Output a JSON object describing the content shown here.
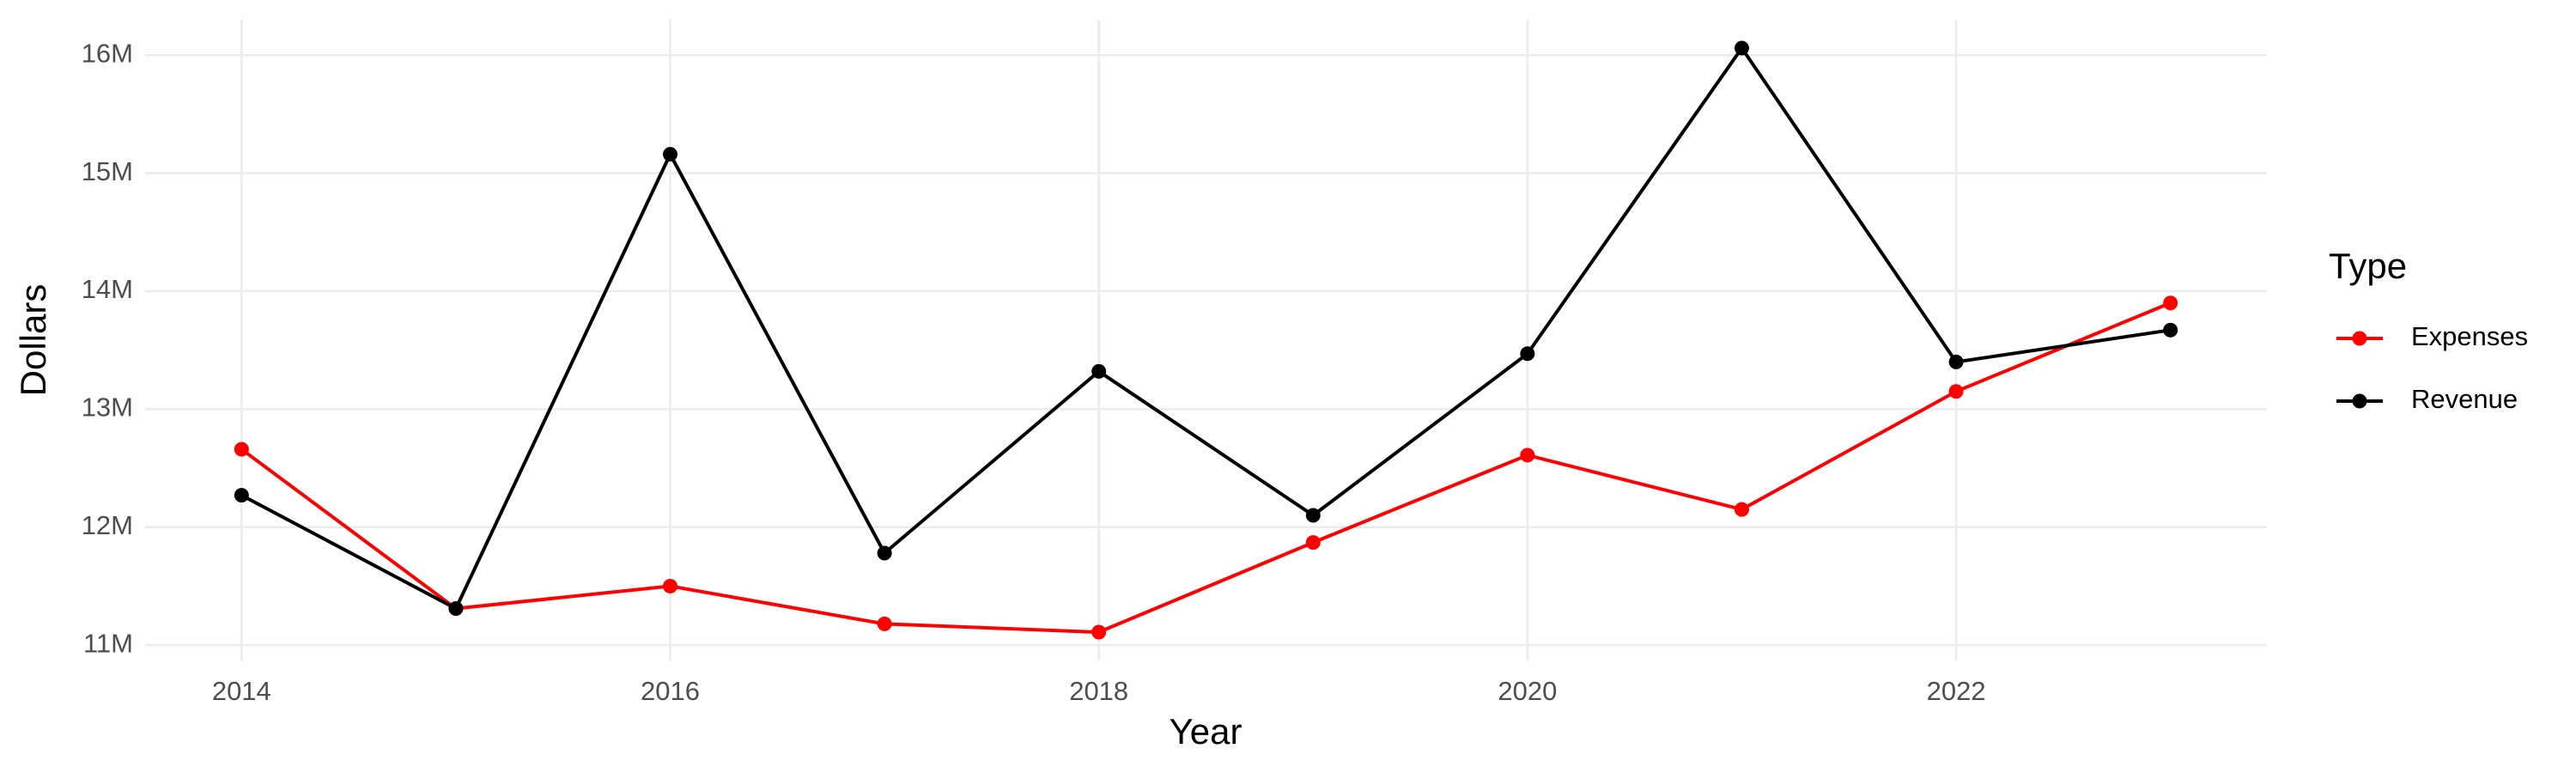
{
  "chart_data": {
    "type": "line",
    "x_label": "Year",
    "y_label": "Dollars",
    "legend_title": "Type",
    "x": [
      2014,
      2015,
      2016,
      2017,
      2018,
      2019,
      2020,
      2021,
      2022,
      2023
    ],
    "series": [
      {
        "name": "Expenses",
        "color": "#ff0000",
        "values": [
          12660000,
          11310000,
          11500000,
          11180000,
          11110000,
          11870000,
          12610000,
          12150000,
          13150000,
          13900000
        ]
      },
      {
        "name": "Revenue",
        "color": "#000000",
        "values": [
          12270000,
          11310000,
          15160000,
          11780000,
          13320000,
          12100000,
          13470000,
          16060000,
          13400000,
          13670000
        ]
      }
    ],
    "xlim": [
      2013.55,
      2023.45
    ],
    "xticks": [
      2014,
      2016,
      2018,
      2020,
      2022
    ],
    "ylim": [
      10870000,
      16300000
    ],
    "yticks": [
      {
        "value": 11000000,
        "label": "11M"
      },
      {
        "value": 12000000,
        "label": "12M"
      },
      {
        "value": 13000000,
        "label": "13M"
      },
      {
        "value": 14000000,
        "label": "14M"
      },
      {
        "value": 15000000,
        "label": "15M"
      },
      {
        "value": 16000000,
        "label": "16M"
      }
    ],
    "grid": true,
    "legend": "right"
  }
}
